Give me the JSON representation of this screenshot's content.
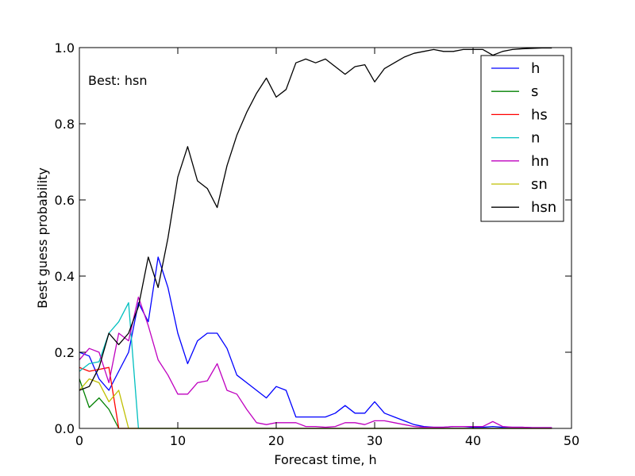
{
  "chart_data": {
    "type": "line",
    "title": "",
    "xlabel": "Forecast time, h",
    "ylabel": "Best guess probability",
    "xlim": [
      0,
      50
    ],
    "ylim": [
      0,
      1.0
    ],
    "xticks": [
      0,
      10,
      20,
      30,
      40,
      50
    ],
    "xtick_labels": [
      "0",
      "10",
      "20",
      "30",
      "40",
      "50"
    ],
    "yticks": [
      0,
      0.2,
      0.4,
      0.6,
      0.8,
      1.0
    ],
    "ytick_labels": [
      "0.0",
      "0.2",
      "0.4",
      "0.6",
      "0.8",
      "1.0"
    ],
    "grid": false,
    "legend_position": "top-right",
    "annotation": "Best: hsn",
    "x": [
      0,
      1,
      2,
      3,
      4,
      5,
      6,
      7,
      8,
      9,
      10,
      11,
      12,
      13,
      14,
      15,
      16,
      17,
      18,
      19,
      20,
      21,
      22,
      23,
      24,
      25,
      26,
      27,
      28,
      29,
      30,
      31,
      32,
      33,
      34,
      35,
      36,
      37,
      38,
      39,
      40,
      41,
      42,
      43,
      44,
      45,
      46,
      47,
      48
    ],
    "series": [
      {
        "name": "h",
        "color": "#0000ff",
        "values": [
          0.2,
          0.19,
          0.13,
          0.1,
          0.15,
          0.2,
          0.33,
          0.28,
          0.45,
          0.37,
          0.25,
          0.17,
          0.23,
          0.25,
          0.25,
          0.21,
          0.14,
          0.12,
          0.1,
          0.08,
          0.11,
          0.1,
          0.03,
          0.03,
          0.03,
          0.03,
          0.04,
          0.06,
          0.04,
          0.04,
          0.07,
          0.04,
          0.03,
          0.02,
          0.01,
          0.005,
          0.003,
          0.003,
          0.005,
          0.005,
          0.003,
          0.003,
          0.005,
          0.003,
          0.003,
          0.003,
          0.002,
          0.002,
          0.002
        ]
      },
      {
        "name": "s",
        "color": "#008000",
        "values": [
          0.13,
          0.055,
          0.08,
          0.05,
          0.0,
          0.0,
          0.0,
          0.0,
          0.0,
          0.0,
          0.0,
          0.0,
          0.0,
          0.0,
          0.0,
          0.0,
          0.0,
          0.0,
          0.0,
          0.0,
          0.0,
          0.0,
          0.0,
          0.0,
          0.0,
          0.0,
          0.0,
          0.0,
          0.0,
          0.0,
          0.0,
          0.0,
          0.0,
          0.0,
          0.0,
          0.0,
          0.0,
          0.0,
          0.0,
          0.0,
          0.0,
          0.0,
          0.0,
          0.0,
          0.0,
          0.0,
          0.0,
          0.0,
          0.0
        ]
      },
      {
        "name": "hs",
        "color": "#ff0000",
        "values": [
          0.16,
          0.15,
          0.155,
          0.16,
          0.0,
          0.0,
          0.0,
          0.0,
          0.0,
          0.0,
          0.0,
          0.0,
          0.0,
          0.0,
          0.0,
          0.0,
          0.0,
          0.0,
          0.0,
          0.0,
          0.0,
          0.0,
          0.0,
          0.0,
          0.0,
          0.0,
          0.0,
          0.0,
          0.0,
          0.0,
          0.0,
          0.0,
          0.0,
          0.0,
          0.0,
          0.0,
          0.0,
          0.0,
          0.0,
          0.0,
          0.0,
          0.0,
          0.0,
          0.0,
          0.0,
          0.0,
          0.0,
          0.0,
          0.0
        ]
      },
      {
        "name": "n",
        "color": "#00bfbf",
        "values": [
          0.15,
          0.17,
          0.175,
          0.25,
          0.28,
          0.33,
          0.0,
          0.0,
          0.0,
          0.0,
          0.0,
          0.0,
          0.0,
          0.0,
          0.0,
          0.0,
          0.0,
          0.0,
          0.0,
          0.0,
          0.0,
          0.0,
          0.0,
          0.0,
          0.0,
          0.0,
          0.0,
          0.0,
          0.0,
          0.0,
          0.0,
          0.0,
          0.0,
          0.0,
          0.0,
          0.0,
          0.0,
          0.0,
          0.0,
          0.0,
          0.0,
          0.0,
          0.0,
          0.0,
          0.0,
          0.0,
          0.0,
          0.0,
          0.0
        ]
      },
      {
        "name": "hn",
        "color": "#bf00bf",
        "values": [
          0.18,
          0.21,
          0.2,
          0.12,
          0.25,
          0.23,
          0.345,
          0.27,
          0.18,
          0.14,
          0.09,
          0.09,
          0.12,
          0.125,
          0.17,
          0.1,
          0.09,
          0.05,
          0.015,
          0.01,
          0.015,
          0.015,
          0.015,
          0.005,
          0.005,
          0.003,
          0.005,
          0.015,
          0.015,
          0.01,
          0.02,
          0.02,
          0.015,
          0.01,
          0.005,
          0.003,
          0.003,
          0.003,
          0.005,
          0.005,
          0.005,
          0.005,
          0.018,
          0.005,
          0.003,
          0.003,
          0.002,
          0.002,
          0.002
        ]
      },
      {
        "name": "sn",
        "color": "#bfbf00",
        "values": [
          0.1,
          0.13,
          0.12,
          0.07,
          0.1,
          0.0,
          0.0,
          0.0,
          0.0,
          0.0,
          0.0,
          0.0,
          0.0,
          0.0,
          0.0,
          0.0,
          0.0,
          0.0,
          0.0,
          0.0,
          0.0,
          0.0,
          0.0,
          0.0,
          0.0,
          0.0,
          0.0,
          0.0,
          0.0,
          0.0,
          0.0,
          0.0,
          0.0,
          0.0,
          0.0,
          0.0,
          0.0,
          0.0,
          0.0,
          0.0,
          0.0,
          0.0,
          0.0,
          0.0,
          0.0,
          0.0,
          0.0,
          0.0,
          0.0
        ]
      },
      {
        "name": "hsn",
        "color": "#000000",
        "values": [
          0.1,
          0.11,
          0.16,
          0.25,
          0.22,
          0.25,
          0.32,
          0.45,
          0.37,
          0.5,
          0.66,
          0.74,
          0.65,
          0.63,
          0.58,
          0.69,
          0.77,
          0.83,
          0.88,
          0.92,
          0.87,
          0.89,
          0.96,
          0.97,
          0.96,
          0.97,
          0.95,
          0.93,
          0.95,
          0.955,
          0.91,
          0.945,
          0.96,
          0.975,
          0.985,
          0.99,
          0.995,
          0.99,
          0.99,
          0.995,
          0.995,
          0.995,
          0.98,
          0.99,
          0.995,
          0.997,
          0.998,
          0.999,
          0.999
        ]
      }
    ]
  }
}
